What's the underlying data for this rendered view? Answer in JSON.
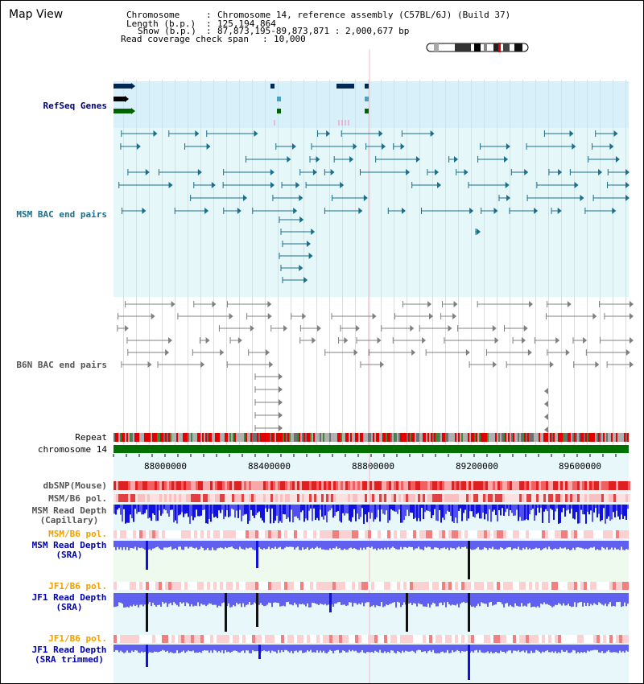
{
  "page": {
    "title": "Map View"
  },
  "info": {
    "chromosome_label": "Chromosome",
    "chromosome_value": "Chromosome 14, reference assembly (C57BL/6J) (Build 37)",
    "length_label": "Length (b.p.)",
    "length_value": "125,194,864",
    "show_label": "Show (b.p.)",
    "show_value": "87,873,195-89,873,871 : 2,000,677 bp",
    "coverage_label": "Read coverage check span",
    "coverage_value": "10,000"
  },
  "tracks": {
    "refseq": "RefSeq Genes",
    "msm_bac": "MSM BAC end pairs",
    "b6n_bac": "B6N BAC end pairs",
    "repeat": "Repeat",
    "chromosome": "chromosome 14",
    "dbsnp": "dbSNP(Mouse)",
    "msm_b6_pol": "MSM/B6 pol.",
    "msm_depth_cap_1": "MSM Read Depth",
    "msm_depth_cap_2": "(Capillary)",
    "msm_b6_pol2": "MSM/B6 pol.",
    "msm_depth_sra_1": "MSM Read Depth",
    "msm_depth_sra_2": "(SRA)",
    "jf1_pol": "JF1/B6 pol.",
    "jf1_depth_1": "JF1 Read Depth",
    "jf1_depth_2": "(SRA)",
    "jf1_pol2": "JF1/B6 pol.",
    "jf1_trim_1": "JF1 Read Depth",
    "jf1_trim_2": "(SRA trimmed)"
  },
  "axis": {
    "ticks": [
      "88000000",
      "88400000",
      "88800000",
      "89200000",
      "89600000"
    ]
  },
  "colors": {
    "refseq_bg": "#d8f0fa",
    "msm_bg": "#e6f7fa",
    "track_blue": "#0000b0",
    "track_orange": "#f0a000",
    "track_teal": "#004c6e",
    "bac_teal": "#1a6f8a",
    "bac_gray": "#808080",
    "chrom_green": "#007000"
  }
}
